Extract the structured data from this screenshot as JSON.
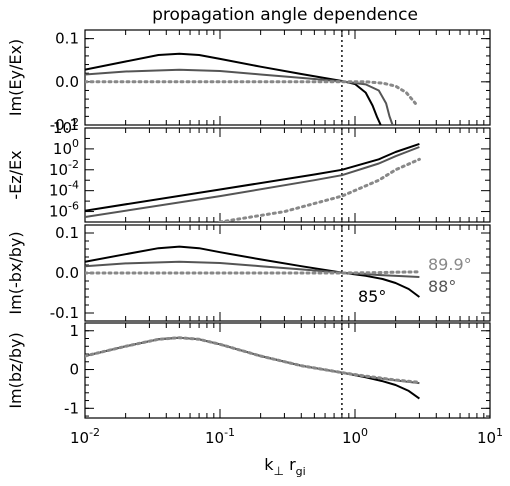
{
  "chart_data": {
    "type": "line",
    "title": "propagation angle dependence",
    "xlabel": {
      "base": "k",
      "sub1": "⊥",
      "mid": " r",
      "sub2": "gi"
    },
    "xscale": "log",
    "xlim": [
      0.01,
      10
    ],
    "x_ticks": [
      {
        "value": 0.01,
        "base": "10",
        "exp": "-2"
      },
      {
        "value": 0.1,
        "base": "10",
        "exp": "-1"
      },
      {
        "value": 1,
        "base": "10",
        "exp": "0"
      },
      {
        "value": 10,
        "base": "10",
        "exp": "1"
      }
    ],
    "vertical_line_x": 0.8,
    "series_styles": {
      "85°": {
        "color": "#000000",
        "dash": "none",
        "width": 2
      },
      "88°": {
        "color": "#555555",
        "dash": "none",
        "width": 2
      },
      "89.9°": {
        "color": "#888888",
        "dash": "dotted",
        "width": 3
      }
    },
    "panels": [
      {
        "id": "ey",
        "ylabel": "Im(Ey/Ex)",
        "yscale": "linear",
        "ylim": [
          -0.1,
          0.12
        ],
        "y_ticks": [
          {
            "value": 0.1,
            "label": "0.1"
          },
          {
            "value": 0.0,
            "label": "0.0"
          },
          {
            "value": -0.1,
            "label": "-0.1"
          }
        ],
        "series": [
          {
            "name": "85°",
            "x": [
              0.01,
              0.02,
              0.035,
              0.05,
              0.07,
              0.1,
              0.2,
              0.4,
              0.8,
              1.0,
              1.2,
              1.35,
              1.45,
              1.55
            ],
            "y": [
              0.028,
              0.047,
              0.062,
              0.065,
              0.062,
              0.053,
              0.035,
              0.018,
              0.002,
              -0.005,
              -0.025,
              -0.055,
              -0.08,
              -0.1
            ]
          },
          {
            "name": "88°",
            "x": [
              0.01,
              0.02,
              0.05,
              0.1,
              0.2,
              0.4,
              0.8,
              1.2,
              1.5,
              1.7,
              1.8,
              1.9
            ],
            "y": [
              0.017,
              0.024,
              0.028,
              0.025,
              0.017,
              0.009,
              0.001,
              -0.006,
              -0.02,
              -0.05,
              -0.08,
              -0.1
            ]
          },
          {
            "name": "89.9°",
            "x": [
              0.01,
              0.1,
              0.5,
              0.8,
              1.2,
              1.6,
              2.0,
              2.4,
              2.8
            ],
            "y": [
              0.0,
              0.0,
              0.0,
              0.0,
              0.0,
              -0.003,
              -0.01,
              -0.025,
              -0.05
            ]
          }
        ]
      },
      {
        "id": "ez",
        "ylabel": "-Ez/Ex",
        "yscale": "log",
        "ylim": [
          1e-07,
          100
        ],
        "y_ticks": [
          {
            "value": 100,
            "base": "10",
            "exp": "2"
          },
          {
            "value": 1,
            "base": "10",
            "exp": "0"
          },
          {
            "value": 0.01,
            "base": "10",
            "exp": "-2"
          },
          {
            "value": 0.0001,
            "base": "10",
            "exp": "-4"
          },
          {
            "value": 1e-06,
            "base": "10",
            "exp": "-6"
          }
        ],
        "series": [
          {
            "name": "85°",
            "x": [
              0.01,
              0.1,
              0.5,
              0.8,
              1.5,
              2.0,
              3.0
            ],
            "y": [
              1.2e-06,
              0.00013,
              0.0035,
              0.01,
              0.1,
              0.5,
              3
            ]
          },
          {
            "name": "88°",
            "x": [
              0.01,
              0.1,
              0.5,
              0.8,
              1.5,
              2.0,
              3.0
            ],
            "y": [
              3e-07,
              3e-05,
              0.001,
              0.003,
              0.04,
              0.2,
              1.5
            ]
          },
          {
            "name": "89.9°",
            "x": [
              0.1,
              0.3,
              0.8,
              1.5,
              2.0,
              3.0
            ],
            "y": [
              1e-07,
              1e-06,
              3e-05,
              0.001,
              0.01,
              0.1
            ]
          }
        ]
      },
      {
        "id": "bx",
        "ylabel": "Im(-bx/by)",
        "yscale": "linear",
        "ylim": [
          -0.12,
          0.12
        ],
        "y_ticks": [
          {
            "value": 0.1,
            "label": "0.1"
          },
          {
            "value": 0.0,
            "label": "0.0"
          },
          {
            "value": -0.1,
            "label": "-0.1"
          }
        ],
        "series": [
          {
            "name": "85°",
            "x": [
              0.01,
              0.02,
              0.035,
              0.05,
              0.07,
              0.1,
              0.2,
              0.4,
              0.8,
              1.2,
              1.6,
              2.0,
              2.5,
              3.0
            ],
            "y": [
              0.028,
              0.047,
              0.062,
              0.066,
              0.062,
              0.052,
              0.034,
              0.017,
              0.001,
              -0.007,
              -0.015,
              -0.025,
              -0.04,
              -0.06
            ]
          },
          {
            "name": "88°",
            "x": [
              0.01,
              0.02,
              0.05,
              0.1,
              0.2,
              0.4,
              0.8,
              1.5,
              3.0
            ],
            "y": [
              0.017,
              0.024,
              0.028,
              0.025,
              0.017,
              0.009,
              0.001,
              -0.005,
              -0.01
            ]
          },
          {
            "name": "89.9°",
            "x": [
              0.01,
              0.1,
              0.5,
              0.8,
              1.5,
              2.0,
              3.0
            ],
            "y": [
              0.0,
              0.0,
              0.0,
              0.0,
              0.001,
              0.002,
              0.003
            ]
          }
        ],
        "annotations": [
          {
            "text": "89.9°",
            "color": "#888888"
          },
          {
            "text": "88°",
            "color": "#555555"
          },
          {
            "text": "85°",
            "color": "#000000"
          }
        ]
      },
      {
        "id": "bz",
        "ylabel": "Im(bz/by)",
        "yscale": "linear",
        "ylim": [
          -1.25,
          1.2
        ],
        "y_ticks": [
          {
            "value": 1,
            "label": "1"
          },
          {
            "value": 0,
            "label": "0"
          },
          {
            "value": -1,
            "label": "-1"
          }
        ],
        "series": [
          {
            "name": "85°",
            "x": [
              0.01,
              0.02,
              0.035,
              0.05,
              0.07,
              0.1,
              0.2,
              0.4,
              0.8,
              1.2,
              1.6,
              2.0,
              2.5,
              3.0
            ],
            "y": [
              0.35,
              0.6,
              0.78,
              0.82,
              0.78,
              0.65,
              0.35,
              0.1,
              -0.08,
              -0.2,
              -0.3,
              -0.4,
              -0.55,
              -0.75
            ]
          },
          {
            "name": "88°",
            "x": [
              0.01,
              0.02,
              0.035,
              0.05,
              0.07,
              0.1,
              0.2,
              0.4,
              0.8,
              1.2,
              2.0,
              3.0
            ],
            "y": [
              0.35,
              0.6,
              0.78,
              0.82,
              0.78,
              0.65,
              0.35,
              0.1,
              -0.08,
              -0.18,
              -0.28,
              -0.35
            ]
          },
          {
            "name": "89.9°",
            "x": [
              0.01,
              0.02,
              0.035,
              0.05,
              0.07,
              0.1,
              0.2,
              0.4,
              0.8,
              1.2,
              2.0,
              3.0
            ],
            "y": [
              0.35,
              0.6,
              0.78,
              0.82,
              0.78,
              0.65,
              0.35,
              0.1,
              -0.08,
              -0.17,
              -0.27,
              -0.33
            ]
          }
        ]
      }
    ]
  }
}
